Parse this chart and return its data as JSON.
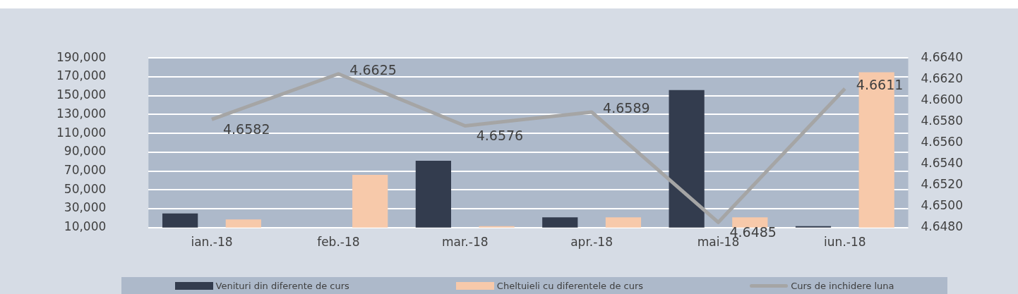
{
  "chart_data": {
    "type": "bar",
    "categories": [
      "ian.-18",
      "feb.-18",
      "mar.-18",
      "apr.-18",
      "mai-18",
      "iun.-18"
    ],
    "series": [
      {
        "name": "Venituri din diferente de curs",
        "color": "#333c4e",
        "values": [
          25000,
          null,
          81000,
          20900,
          156000,
          11600
        ]
      },
      {
        "name": "Cheltuieli cu diferentele de curs",
        "color": "#f7c9aa",
        "values": [
          18700,
          66000,
          11600,
          20900,
          20900,
          174800
        ]
      },
      {
        "name": "Curs de inchidere luna",
        "type": "line",
        "axis": "y2",
        "color": "#a5a5a5",
        "values": [
          4.6582,
          4.6625,
          4.6576,
          4.6589,
          4.6485,
          4.6611
        ],
        "value_labels": [
          "4.6582",
          "4.6625",
          "4.6576",
          "4.6589",
          "4.6485",
          "4.6611"
        ]
      }
    ],
    "ylim": [
      10000,
      190000
    ],
    "yticks": [
      {
        "value": 10000,
        "label": "10,000"
      },
      {
        "value": 30000,
        "label": "30,000"
      },
      {
        "value": 50000,
        "label": "50,000"
      },
      {
        "value": 70000,
        "label": "70,000"
      },
      {
        "value": 90000,
        "label": "90,000"
      },
      {
        "value": 110000,
        "label": "110,000"
      },
      {
        "value": 130000,
        "label": "130,000"
      },
      {
        "value": 150000,
        "label": "150,000"
      },
      {
        "value": 170000,
        "label": "170,000"
      },
      {
        "value": 190000,
        "label": "190,000"
      }
    ],
    "y2lim": [
      4.648,
      4.664
    ],
    "y2ticks": [
      {
        "value": 4.648,
        "label": "4.6480"
      },
      {
        "value": 4.65,
        "label": "4.6500"
      },
      {
        "value": 4.652,
        "label": "4.6520"
      },
      {
        "value": 4.654,
        "label": "4.6540"
      },
      {
        "value": 4.656,
        "label": "4.6560"
      },
      {
        "value": 4.658,
        "label": "4.6580"
      },
      {
        "value": 4.66,
        "label": "4.6600"
      },
      {
        "value": 4.662,
        "label": "4.6620"
      },
      {
        "value": 4.664,
        "label": "4.6640"
      }
    ],
    "grid": "y",
    "legend": "bottom"
  }
}
